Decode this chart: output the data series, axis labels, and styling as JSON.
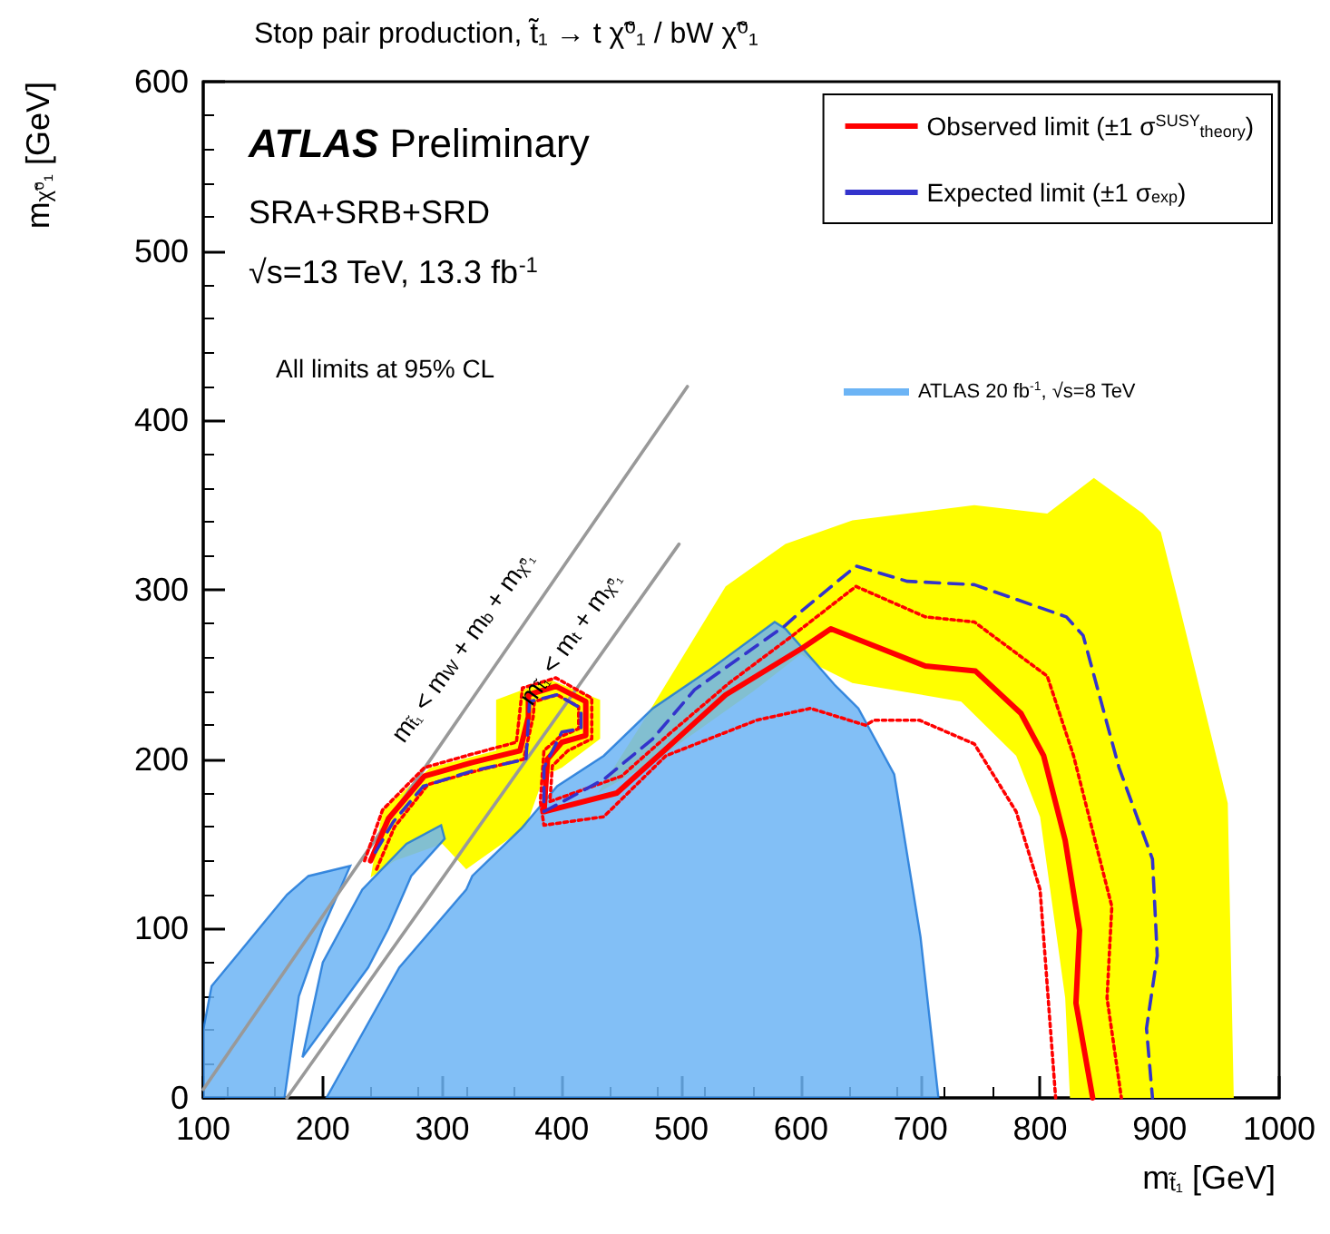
{
  "chart_data": {
    "type": "line",
    "title": "Stop pair production, t̃₁ → t χ̃⁰₁ / bW χ̃⁰₁",
    "xlabel": "m$_{t̃₁}$ [GeV]",
    "ylabel": "m$_{χ̃⁰₁}$ [GeV]",
    "xlim": [
      100,
      1000
    ],
    "xticks": [
      100,
      200,
      300,
      400,
      500,
      600,
      700,
      800,
      900,
      1000
    ],
    "ylim": [
      0,
      600
    ],
    "yticks": [
      0,
      100,
      200,
      300,
      400,
      500,
      600
    ],
    "grid": false,
    "legend": "top right",
    "marker": "none",
    "series": [
      {
        "type": "area",
        "color": "#ffff00",
        "x": [
          466,
          537,
          587,
          643,
          745,
          806,
          845,
          886,
          901,
          916,
          957,
          962,
          825,
          821,
          800,
          780,
          734,
          643,
          617,
          600,
          560,
          480,
          430,
          null,
          240,
          250,
          290,
          345,
          345,
          390,
          432,
          432,
          400,
          385,
          370,
          320,
          300,
          260
        ],
        "values": [
          220,
          302,
          327,
          341,
          350,
          345,
          366,
          345,
          334,
          292,
          174,
          0,
          0,
          59,
          166,
          202,
          234,
          245,
          254,
          262,
          240,
          200,
          180,
          null,
          130,
          170,
          195,
          205,
          235,
          247,
          235,
          212,
          195,
          190,
          160,
          135,
          150,
          140
        ]
      },
      {
        "type": "area",
        "name": "ATLAS 20 fb$^{-1}$, √s=8 TeV",
        "color": "#6cb4f5",
        "x": [
          203,
          264,
          320,
          325,
          366,
          396,
          435,
          476,
          522,
          578,
          587,
          628,
          648,
          678,
          700,
          715,
          null,
          100,
          100,
          107,
          170,
          188,
          223,
          200,
          180,
          168,
          null,
          183,
          200,
          233,
          270,
          299,
          302,
          274,
          255,
          238,
          210
        ],
        "values": [
          0,
          77,
          123,
          131,
          159,
          184,
          202,
          230,
          252,
          281,
          277,
          244,
          230,
          191,
          95,
          0,
          null,
          0,
          40,
          66,
          120,
          131,
          137,
          100,
          60,
          0,
          null,
          24,
          80,
          123,
          150,
          161,
          153,
          131,
          100,
          77,
          50
        ]
      },
      {
        "color": "#999999",
        "x": [
          100,
          505
        ],
        "values": [
          5,
          420
        ]
      },
      {
        "color": "#999999",
        "x": [
          170,
          498
        ],
        "values": [
          0,
          327
        ]
      },
      {
        "color": "#ff0000",
        "line_style": "dotted",
        "x": [
          245,
          260,
          288,
          328,
          368,
          376,
          377,
          396,
          414,
          414,
          398,
          385,
          382,
          385,
          435,
          487,
          563,
          608,
          654,
          661,
          699,
          745,
          780,
          800,
          806,
          813
        ],
        "values": [
          135,
          160,
          185,
          193,
          200,
          225,
          234,
          238,
          231,
          218,
          213,
          205,
          175,
          161,
          166,
          202,
          223,
          230,
          220,
          223,
          223,
          209,
          169,
          123,
          66,
          0
        ]
      },
      {
        "color": "#ff0000",
        "line_style": "dotted",
        "x": [
          235,
          250,
          285,
          325,
          362,
          367,
          395,
          425,
          425,
          405,
          392,
          390,
          450,
          490,
          540,
          593,
          646,
          704,
          745,
          806,
          828,
          860,
          856,
          868
        ],
        "values": [
          140,
          170,
          195,
          203,
          210,
          242,
          248,
          236,
          212,
          205,
          196,
          175,
          190,
          215,
          245,
          273,
          302,
          284,
          281,
          249,
          202,
          113,
          59,
          0
        ]
      },
      {
        "name": "Observed limit (±1 σ$^{SUSY}$$_{theory}$)",
        "color": "#ff0000",
        "line_style": "solid",
        "x": [
          240,
          255,
          285,
          325,
          365,
          372,
          372,
          395,
          420,
          420,
          400,
          388,
          385,
          446,
          487,
          537,
          602,
          625,
          704,
          746,
          784,
          803,
          821,
          833,
          830,
          844
        ],
        "values": [
          140,
          165,
          190,
          198,
          205,
          225,
          238,
          243,
          234,
          214,
          210,
          200,
          169,
          180,
          206,
          238,
          266,
          277,
          255,
          252,
          227,
          202,
          152,
          99,
          56,
          0
        ]
      },
      {
        "name": "Expected limit (±1 σ$_{exp}$)",
        "color": "#3333cc",
        "line_style": "dashed",
        "x": [
          244,
          259,
          284,
          325,
          370,
          373,
          396,
          416,
          416,
          400,
          385,
          385,
          435,
          476,
          511,
          587,
          598,
          646,
          689,
          745,
          822,
          836,
          866,
          894,
          898,
          889,
          894
        ],
        "values": [
          145,
          163,
          184,
          193,
          200,
          234,
          238,
          230,
          218,
          216,
          195,
          169,
          188,
          212,
          241,
          279,
          286,
          314,
          305,
          303,
          284,
          273,
          195,
          141,
          84,
          41,
          0
        ]
      }
    ],
    "annotations": [
      "ATLAS Preliminary",
      "SRA+SRB+SRD",
      "√s=13 TeV, 13.3 fb$^{-1}$",
      "All limits at 95% CL",
      {
        "text": "m$_{t̃₁}$ < m$_{W}$ + m$_{b}$ + m$_{χ̃⁰₁}$",
        "x": 340,
        "y": 255
      },
      {
        "text": "m$_{t̃₁}$ < m$_{t}$ + m$_{χ̃⁰₁}$",
        "x": 430,
        "y": 260
      }
    ]
  }
}
